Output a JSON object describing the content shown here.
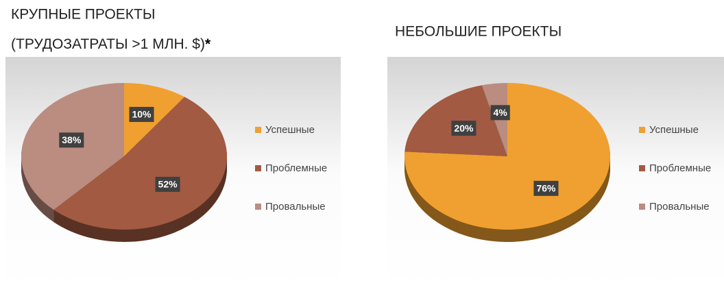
{
  "chart_data": [
    {
      "type": "pie",
      "title": "КРУПНЫЕ ПРОЕКТЫ",
      "subtitle": "(ТРУДОЗАТРАТЫ >1 МЛН. $)",
      "note_marker": "*",
      "categories": [
        "Успешные",
        "Проблемные",
        "Провальные"
      ],
      "values": [
        10,
        52,
        38
      ],
      "value_labels": [
        "10%",
        "52%",
        "38%"
      ],
      "colors": [
        "#f0a030",
        "#a25a42",
        "#bb8c80"
      ],
      "legend": "right"
    },
    {
      "type": "pie",
      "title": "НЕБОЛЬШИЕ ПРОЕКТЫ",
      "categories": [
        "Успешные",
        "Проблемные",
        "Провальные"
      ],
      "values": [
        76,
        20,
        4
      ],
      "value_labels": [
        "76%",
        "20%",
        "4%"
      ],
      "colors": [
        "#f0a030",
        "#a25a42",
        "#bb8c80"
      ],
      "legend": "right"
    }
  ]
}
